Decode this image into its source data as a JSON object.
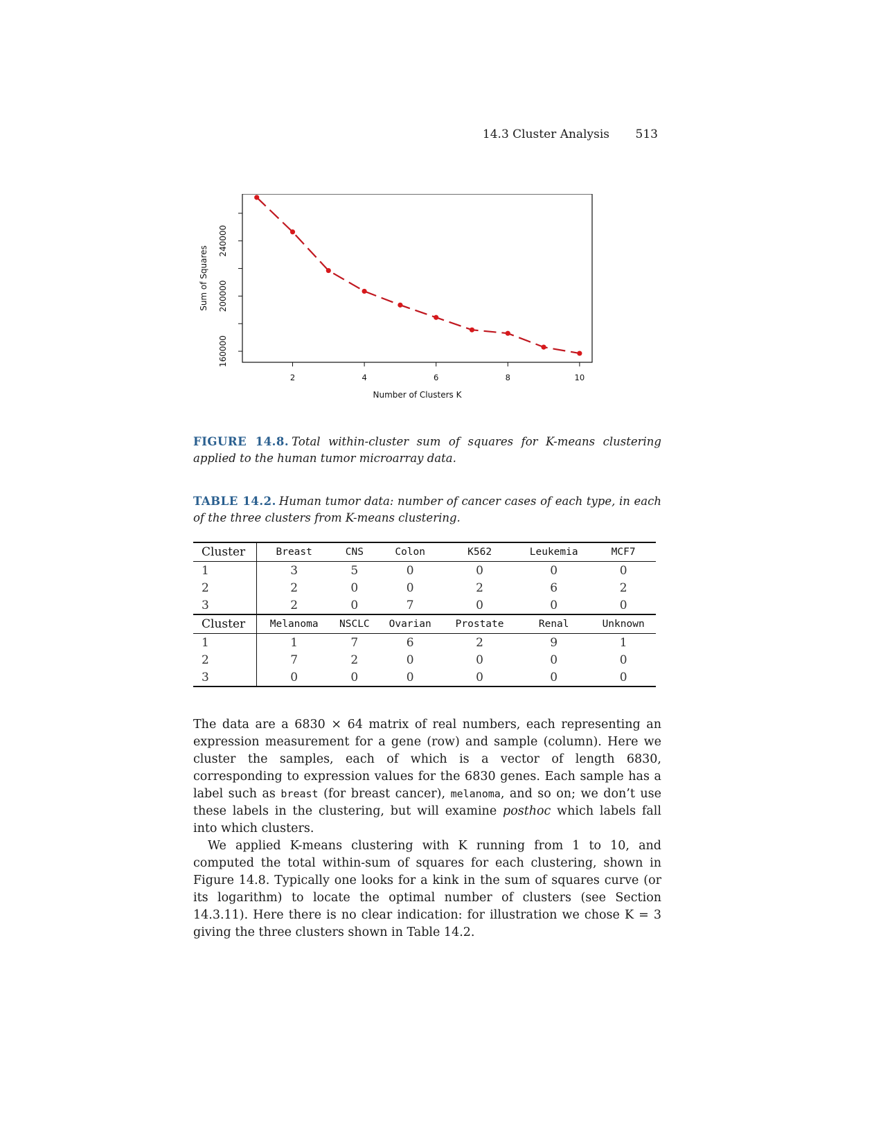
{
  "header": {
    "section": "14.3 Cluster Analysis",
    "page": "513"
  },
  "chart_data": {
    "type": "line",
    "xlabel": "Number of Clusters K",
    "ylabel": "Sum of Squares",
    "x": [
      1,
      2,
      3,
      4,
      5,
      6,
      7,
      8,
      9,
      10
    ],
    "y": [
      271500,
      246500,
      218500,
      203500,
      193500,
      184500,
      175500,
      173000,
      163000,
      158500
    ],
    "xticks": [
      2,
      4,
      6,
      8,
      10
    ],
    "yticks": [
      160000,
      200000,
      240000
    ],
    "ylim": [
      152000,
      274000
    ],
    "xlim": [
      0.6,
      10.35
    ],
    "line_style": "dashed",
    "marker_color": "#d7191c",
    "line_color": "#c0171f"
  },
  "figure": {
    "label": "FIGURE 14.8.",
    "caption": "Total within-cluster sum of squares for K-means clustering applied to the human tumor microarray data."
  },
  "table": {
    "label": "TABLE 14.2.",
    "caption": "Human tumor data: number of cancer cases of each type, in each of the three clusters from K-means clustering.",
    "blocks": [
      {
        "header": [
          "Cluster",
          "Breast",
          "CNS",
          "Colon",
          "K562",
          "Leukemia",
          "MCF7"
        ],
        "rows": [
          [
            "1",
            "3",
            "5",
            "0",
            "0",
            "0",
            "0"
          ],
          [
            "2",
            "2",
            "0",
            "0",
            "2",
            "6",
            "2"
          ],
          [
            "3",
            "2",
            "0",
            "7",
            "0",
            "0",
            "0"
          ]
        ]
      },
      {
        "header": [
          "Cluster",
          "Melanoma",
          "NSCLC",
          "Ovarian",
          "Prostate",
          "Renal",
          "Unknown"
        ],
        "rows": [
          [
            "1",
            "1",
            "7",
            "6",
            "2",
            "9",
            "1"
          ],
          [
            "2",
            "7",
            "2",
            "0",
            "0",
            "0",
            "0"
          ],
          [
            "3",
            "0",
            "0",
            "0",
            "0",
            "0",
            "0"
          ]
        ]
      }
    ]
  },
  "body": {
    "p1_a": "The data are a 6830 × 64 matrix of real numbers, each representing an expression measurement for a gene (row) and sample (column). Here we cluster the samples, each of which is a vector of length 6830, corresponding to expression values for the 6830 genes. Each sample has a label such as ",
    "p1_code1": "breast",
    "p1_b": " (for breast cancer), ",
    "p1_code2": "melanoma",
    "p1_c": ", and so on; we don’t use these labels in the clustering, but will examine ",
    "p1_em": "posthoc",
    "p1_d": " which labels fall into which clusters.",
    "p2": "We applied K-means clustering with K running from 1 to 10, and computed the total within-sum of squares for each clustering, shown in Figure 14.8. Typically one looks for a kink in the sum of squares curve (or its logarithm) to locate the optimal number of clusters (see Section 14.3.11). Here there is no clear indication: for illustration we chose K = 3 giving the three clusters shown in Table 14.2."
  }
}
